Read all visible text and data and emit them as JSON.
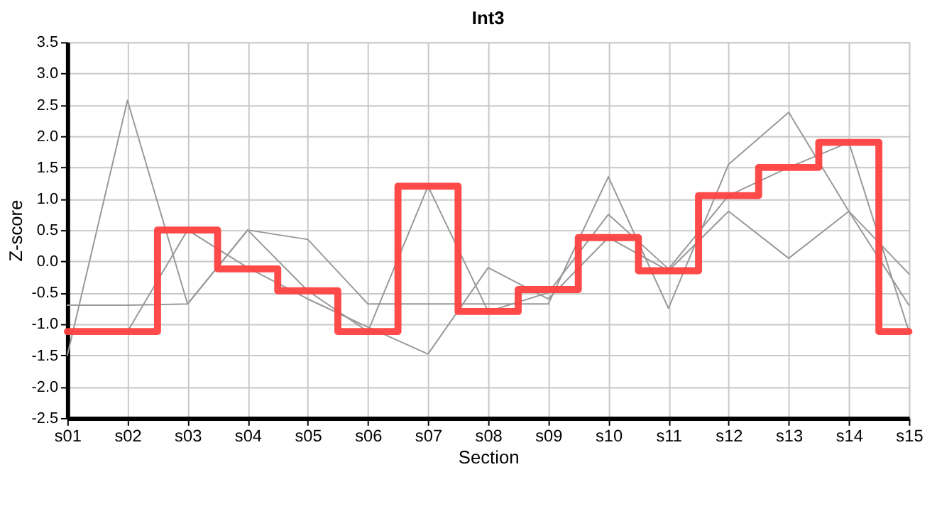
{
  "chart_data": {
    "type": "line",
    "title": "Int3",
    "xlabel": "Section",
    "ylabel": "Z-score",
    "categories": [
      "s01",
      "s02",
      "s03",
      "s04",
      "s05",
      "s06",
      "s07",
      "s08",
      "s09",
      "s10",
      "s11",
      "s12",
      "s13",
      "s14",
      "s15"
    ],
    "series": [
      {
        "type": "line",
        "color": "#999999",
        "values": [
          -1.5,
          2.57,
          -0.68,
          0.5,
          0.35,
          -0.68,
          -0.68,
          -0.68,
          -0.68,
          1.35,
          -0.75,
          1.55,
          2.38,
          0.8,
          -0.2
        ]
      },
      {
        "type": "line",
        "color": "#999999",
        "values": [
          -0.7,
          -0.7,
          -0.68,
          0.5,
          -0.47,
          -1.12,
          1.2,
          -0.8,
          -0.5,
          0.75,
          -0.12,
          1.05,
          1.5,
          1.9,
          -1.12
        ]
      },
      {
        "type": "line",
        "color": "#999999",
        "values": [
          -1.12,
          -1.12,
          0.5,
          -0.1,
          -0.6,
          -1.05,
          -1.48,
          -0.1,
          -0.6,
          0.38,
          -0.15,
          0.8,
          0.05,
          0.8,
          -0.7
        ]
      },
      {
        "type": "step",
        "color": "#ff4040",
        "values": [
          -1.12,
          -1.12,
          0.5,
          -0.12,
          -0.47,
          -1.12,
          1.2,
          -0.8,
          -0.45,
          0.38,
          -0.15,
          1.05,
          1.5,
          1.9,
          -1.12
        ]
      }
    ],
    "ylim": [
      -2.5,
      3.5
    ],
    "yticks": [
      {
        "value": -2.5,
        "label": "-2.5"
      },
      {
        "value": -2.0,
        "label": "-2.0"
      },
      {
        "value": -1.5,
        "label": "-1.5"
      },
      {
        "value": -1.0,
        "label": "-1.0"
      },
      {
        "value": -0.5,
        "label": "-0.5"
      },
      {
        "value": 0,
        "label": "0.0"
      },
      {
        "value": 0.5,
        "label": "0.5"
      },
      {
        "value": 1.0,
        "label": "1.0"
      },
      {
        "value": 1.5,
        "label": "1.5"
      },
      {
        "value": 2.0,
        "label": "2.0"
      },
      {
        "value": 2.5,
        "label": "2.5"
      },
      {
        "value": 3.0,
        "label": "3.0"
      },
      {
        "value": 3.5,
        "label": "3.5"
      }
    ],
    "grid": true
  }
}
